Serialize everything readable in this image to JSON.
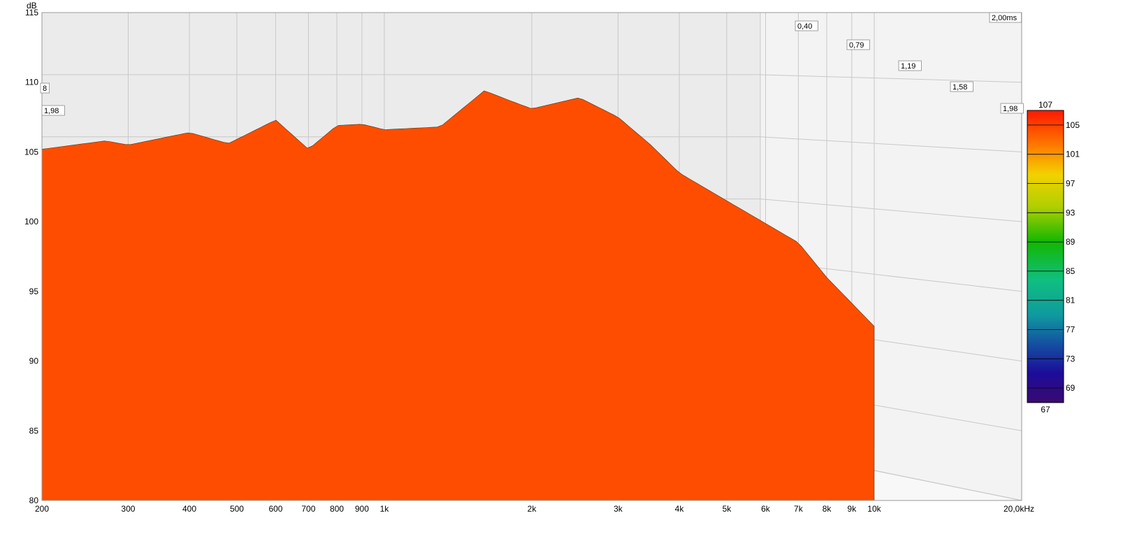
{
  "chart_data": {
    "type": "waterfall",
    "y_unit_label": "dB",
    "y_ticks": [
      "115",
      "110",
      "105",
      "100",
      "95",
      "90",
      "85",
      "80"
    ],
    "y_range": [
      80,
      115
    ],
    "x_scale": "log",
    "x_range_hz": [
      200,
      20000
    ],
    "x_ticks": [
      {
        "hz": 200,
        "label": "200"
      },
      {
        "hz": 300,
        "label": "300"
      },
      {
        "hz": 400,
        "label": "400"
      },
      {
        "hz": 500,
        "label": "500"
      },
      {
        "hz": 600,
        "label": "600"
      },
      {
        "hz": 700,
        "label": "700"
      },
      {
        "hz": 800,
        "label": "800"
      },
      {
        "hz": 900,
        "label": "900"
      },
      {
        "hz": 1000,
        "label": "1k"
      },
      {
        "hz": 2000,
        "label": "2k"
      },
      {
        "hz": 3000,
        "label": "3k"
      },
      {
        "hz": 4000,
        "label": "4k"
      },
      {
        "hz": 5000,
        "label": "5k"
      },
      {
        "hz": 6000,
        "label": "6k"
      },
      {
        "hz": 7000,
        "label": "7k"
      },
      {
        "hz": 8000,
        "label": "8k"
      },
      {
        "hz": 9000,
        "label": "9k"
      },
      {
        "hz": 10000,
        "label": "10k"
      },
      {
        "hz": 20000,
        "label": "20,0kHz"
      }
    ],
    "time_axis": {
      "unit": "ms",
      "range": [
        0,
        2.0
      ],
      "tick_labels": [
        {
          "t": 0.4,
          "label": "0,40"
        },
        {
          "t": 0.79,
          "label": "0,79"
        },
        {
          "t": 1.19,
          "label": "1,19"
        },
        {
          "t": 1.58,
          "label": "1,58"
        },
        {
          "t": 1.98,
          "label": "1,98"
        },
        {
          "t": 2.0,
          "label": "2,00ms"
        }
      ],
      "left_edge_labels": [
        "8",
        "1,98"
      ]
    },
    "colorbar": {
      "min": 67,
      "max": 107,
      "ticks": [
        "107",
        "105",
        "101",
        "97",
        "93",
        "89",
        "85",
        "81",
        "77",
        "73",
        "69",
        "67"
      ]
    },
    "first_slice_response_db": [
      {
        "hz": 200,
        "db": 105.2
      },
      {
        "hz": 270,
        "db": 105.8
      },
      {
        "hz": 300,
        "db": 105.5
      },
      {
        "hz": 400,
        "db": 106.4
      },
      {
        "hz": 480,
        "db": 105.6
      },
      {
        "hz": 600,
        "db": 107.3
      },
      {
        "hz": 700,
        "db": 105.2
      },
      {
        "hz": 800,
        "db": 106.9
      },
      {
        "hz": 900,
        "db": 107.0
      },
      {
        "hz": 1000,
        "db": 106.6
      },
      {
        "hz": 1300,
        "db": 106.8
      },
      {
        "hz": 1600,
        "db": 109.4
      },
      {
        "hz": 1800,
        "db": 108.7
      },
      {
        "hz": 2000,
        "db": 108.1
      },
      {
        "hz": 2500,
        "db": 108.9
      },
      {
        "hz": 3000,
        "db": 107.5
      },
      {
        "hz": 3500,
        "db": 105.5
      },
      {
        "hz": 4000,
        "db": 103.5
      },
      {
        "hz": 5000,
        "db": 101.5
      },
      {
        "hz": 7000,
        "db": 98.5
      },
      {
        "hz": 8000,
        "db": 96.0
      },
      {
        "hz": 10000,
        "db": 92.5
      }
    ],
    "colors": {
      "background_wall": "#ececec",
      "floor": "#f7f7f7",
      "grid": "#c8c8c8",
      "contour": "#1e2b18"
    }
  }
}
